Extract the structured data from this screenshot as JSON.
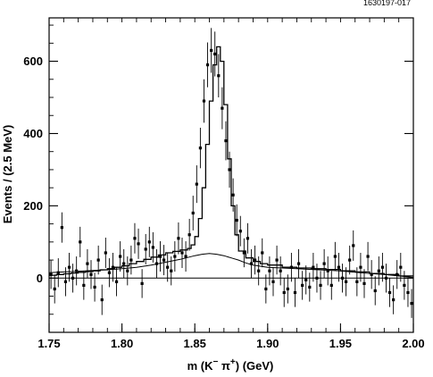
{
  "figure_ref": "1630197-017",
  "chart_data": {
    "type": "scatter",
    "xlabel_parts": {
      "m": "m (K",
      "minus": "−",
      "pi": " π",
      "plus": "+",
      "unit": ") (GeV)"
    },
    "ylabel": "Events / (2.5 MeV)",
    "xlim": [
      1.75,
      2.0
    ],
    "ylim": [
      -150,
      720
    ],
    "x_ticks": [
      1.75,
      1.8,
      1.85,
      1.9,
      1.95,
      2.0
    ],
    "x_tick_labels": [
      "1.75",
      "1.80",
      "1.85",
      "1.90",
      "1.95",
      "2.00"
    ],
    "y_ticks": [
      0,
      200,
      400,
      600
    ],
    "y_tick_labels": [
      "0",
      "200",
      "400",
      "600"
    ],
    "zero_line": true,
    "series": [
      {
        "kind": "data_points_with_errors",
        "x": [
          1.7513,
          1.7538,
          1.7563,
          1.7588,
          1.7613,
          1.7638,
          1.7663,
          1.7688,
          1.7713,
          1.7738,
          1.7763,
          1.7788,
          1.7813,
          1.7838,
          1.7863,
          1.7888,
          1.7913,
          1.7938,
          1.7963,
          1.7988,
          1.8013,
          1.8038,
          1.8063,
          1.8088,
          1.8113,
          1.8138,
          1.8163,
          1.8188,
          1.8213,
          1.8238,
          1.8263,
          1.8288,
          1.8313,
          1.8338,
          1.8363,
          1.8388,
          1.8413,
          1.8438,
          1.8463,
          1.8488,
          1.8513,
          1.8538,
          1.8563,
          1.8588,
          1.8613,
          1.8638,
          1.8663,
          1.8688,
          1.8713,
          1.8738,
          1.8763,
          1.8788,
          1.8813,
          1.8838,
          1.8863,
          1.8888,
          1.8913,
          1.8938,
          1.8963,
          1.8988,
          1.9013,
          1.9038,
          1.9063,
          1.9088,
          1.9113,
          1.9138,
          1.9163,
          1.9188,
          1.9213,
          1.9238,
          1.9263,
          1.9288,
          1.9313,
          1.9338,
          1.9363,
          1.9388,
          1.9413,
          1.9438,
          1.9463,
          1.9488,
          1.9513,
          1.9538,
          1.9563,
          1.9588,
          1.9613,
          1.9638,
          1.9663,
          1.9688,
          1.9713,
          1.9738,
          1.9763,
          1.9788,
          1.9813,
          1.9838,
          1.9863,
          1.9888,
          1.9913,
          1.9938,
          1.9963,
          1.9988
        ],
        "y": [
          10,
          -30,
          15,
          140,
          -10,
          30,
          0,
          20,
          100,
          -20,
          40,
          10,
          -25,
          50,
          -60,
          70,
          15,
          30,
          -10,
          60,
          40,
          20,
          50,
          110,
          95,
          -15,
          80,
          100,
          85,
          40,
          60,
          50,
          30,
          20,
          60,
          110,
          70,
          60,
          120,
          180,
          260,
          360,
          490,
          590,
          630,
          620,
          560,
          470,
          380,
          300,
          230,
          160,
          130,
          70,
          110,
          40,
          50,
          20,
          70,
          -30,
          20,
          -10,
          50,
          20,
          -40,
          -30,
          30,
          -40,
          40,
          -20,
          -5,
          -25,
          30,
          0,
          -20,
          40,
          20,
          -20,
          60,
          30,
          0,
          -10,
          50,
          90,
          -10,
          30,
          -15,
          60,
          10,
          -35,
          20,
          30,
          0,
          -40,
          -60,
          10,
          30,
          -20,
          -40,
          -70
        ],
        "yerr": [
          40,
          40,
          40,
          42,
          40,
          40,
          40,
          40,
          42,
          40,
          40,
          40,
          40,
          40,
          42,
          42,
          40,
          40,
          40,
          42,
          40,
          40,
          40,
          42,
          42,
          40,
          42,
          42,
          42,
          40,
          42,
          42,
          40,
          40,
          42,
          44,
          42,
          42,
          44,
          48,
          52,
          56,
          60,
          62,
          62,
          62,
          60,
          58,
          54,
          50,
          46,
          44,
          42,
          40,
          42,
          40,
          40,
          40,
          40,
          40,
          40,
          40,
          40,
          40,
          40,
          40,
          40,
          40,
          40,
          40,
          40,
          40,
          40,
          40,
          40,
          40,
          40,
          40,
          40,
          40,
          40,
          40,
          40,
          42,
          40,
          40,
          40,
          40,
          40,
          40,
          40,
          40,
          40,
          40,
          40,
          40,
          40,
          40,
          40,
          40
        ]
      },
      {
        "kind": "fit_histogram",
        "x": [
          1.75,
          1.755,
          1.76,
          1.765,
          1.77,
          1.775,
          1.78,
          1.785,
          1.79,
          1.795,
          1.8,
          1.805,
          1.81,
          1.815,
          1.82,
          1.825,
          1.83,
          1.835,
          1.84,
          1.845,
          1.8475,
          1.85,
          1.8525,
          1.855,
          1.8575,
          1.86,
          1.8625,
          1.865,
          1.8675,
          1.87,
          1.8725,
          1.875,
          1.8775,
          1.88,
          1.885,
          1.89,
          1.895,
          1.9,
          1.91,
          1.92,
          1.93,
          1.94,
          1.95,
          1.96,
          1.97,
          1.98,
          1.99,
          2.0
        ],
        "y": [
          8,
          10,
          12,
          14,
          16,
          18,
          20,
          23,
          26,
          30,
          34,
          40,
          46,
          52,
          58,
          64,
          70,
          74,
          78,
          82,
          92,
          115,
          165,
          250,
          370,
          490,
          590,
          640,
          600,
          480,
          330,
          200,
          120,
          75,
          56,
          46,
          40,
          36,
          30,
          28,
          26,
          24,
          20,
          17,
          13,
          10,
          6,
          2
        ]
      },
      {
        "kind": "background_curve",
        "x": [
          1.75,
          1.76,
          1.77,
          1.78,
          1.79,
          1.8,
          1.81,
          1.82,
          1.83,
          1.84,
          1.85,
          1.855,
          1.86,
          1.865,
          1.87,
          1.875,
          1.88,
          1.885,
          1.89,
          1.9,
          1.91,
          1.92,
          1.93,
          1.94,
          1.95,
          1.96,
          1.97,
          1.98,
          1.99,
          2.0
        ],
        "y": [
          15,
          17,
          19,
          21,
          23,
          26,
          30,
          36,
          44,
          52,
          62,
          66,
          68,
          66,
          62,
          56,
          50,
          42,
          36,
          30,
          28,
          26,
          24,
          22,
          20,
          16,
          13,
          10,
          6,
          2
        ]
      }
    ]
  }
}
